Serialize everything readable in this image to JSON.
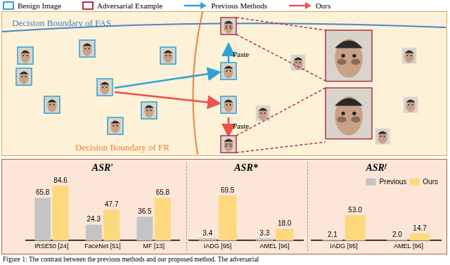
{
  "legend": [
    {
      "label": "Benign Image",
      "marker": "box",
      "color": "#2ea3d8"
    },
    {
      "label": "Adversarial Example",
      "marker": "box",
      "color": "#b0304a"
    },
    {
      "label": "Previous Methods",
      "marker": "arrow",
      "color": "#2ea3d8"
    },
    {
      "label": "Ours",
      "marker": "arrow",
      "color": "#e85450"
    }
  ],
  "diagram": {
    "boundary_fas": "Decision Boundary of FAS",
    "boundary_fr": "Decision Boundary of FR",
    "paste_labels": [
      "Paste",
      "Paste"
    ]
  },
  "chart_data": [
    {
      "type": "bar",
      "title": "ASR′",
      "categories": [
        "IRSE50 [24]",
        "FaceNet [51]",
        "MF [13]"
      ],
      "series": [
        {
          "name": "Previous",
          "color": "#c4c4c4",
          "values": [
            65.8,
            24.3,
            36.5
          ],
          "value_labels": [
            "65.8",
            "24.3",
            "36.5"
          ]
        },
        {
          "name": "Ours",
          "color": "#fdd87c",
          "values": [
            84.6,
            47.7,
            65.8
          ],
          "value_labels": [
            "84.6",
            "47.7",
            "65.8"
          ]
        }
      ],
      "ylim": [
        0,
        100
      ],
      "data_labels": true,
      "tick_labels": "x",
      "grid": false
    },
    {
      "type": "bar",
      "title": "ASR*",
      "categories": [
        "IADG [95]",
        "AMEL [96]"
      ],
      "series": [
        {
          "name": "Previous",
          "color": "#c4c4c4",
          "values": [
            3.4,
            3.3
          ],
          "value_labels": [
            "3.4",
            "3.3"
          ]
        },
        {
          "name": "Ours",
          "color": "#fdd87c",
          "values": [
            69.5,
            18.0
          ],
          "value_labels": [
            "69.5",
            "18.0"
          ]
        }
      ],
      "ylim": [
        0,
        100
      ],
      "data_labels": true,
      "tick_labels": "x",
      "grid": false
    },
    {
      "type": "bar",
      "title": "ASRᶠ",
      "categories": [
        "IADG [95]",
        "AMEL [96]"
      ],
      "series": [
        {
          "name": "Previous",
          "color": "#c4c4c4",
          "values": [
            2.1,
            2.0
          ],
          "value_labels": [
            "2.1",
            "2.0"
          ]
        },
        {
          "name": "Ours",
          "color": "#fdd87c",
          "values": [
            53.0,
            14.7
          ],
          "value_labels": [
            "53.0",
            "14.7"
          ]
        }
      ],
      "ylim": [
        0,
        100
      ],
      "data_labels": true,
      "tick_labels": "x",
      "grid": false,
      "legend": "top right"
    }
  ],
  "caption": "Figure 1: The contrast between the previous methods and our proposed method. The adversarial"
}
